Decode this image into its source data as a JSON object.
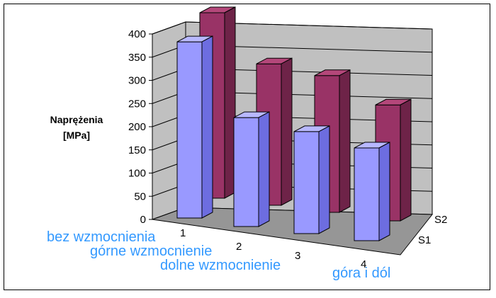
{
  "chart_data": {
    "type": "bar",
    "ylabel_lines": [
      "Naprężenia",
      "[MPa]"
    ],
    "ylim": [
      0,
      400
    ],
    "yticks": [
      0,
      50,
      100,
      150,
      200,
      250,
      300,
      350,
      400
    ],
    "categories": [
      "1",
      "2",
      "3",
      "4"
    ],
    "category_labels": [
      "bez wzmocnienia",
      "górne wzmocnienie",
      "dolne wzmocnienie",
      "góra i dól"
    ],
    "category_label_color": "#3399ff",
    "series": [
      {
        "name": "S1",
        "values": [
          380,
          235,
          220,
          200
        ],
        "color": "#9999ff"
      },
      {
        "name": "S2",
        "values": [
          400,
          305,
          295,
          250
        ],
        "color": "#993366"
      }
    ],
    "wall_color": "#c0c0c0",
    "floor_color": "#969696",
    "grid": true
  }
}
